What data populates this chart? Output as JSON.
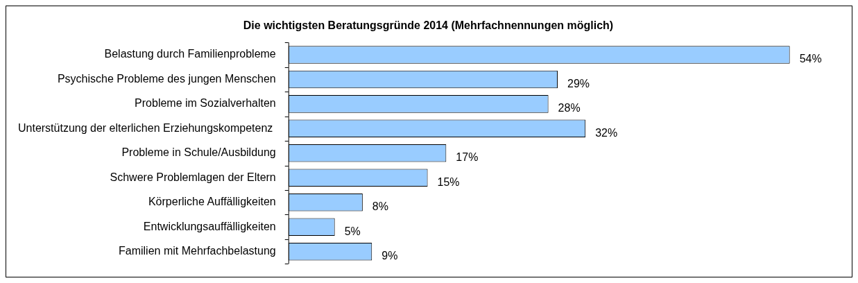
{
  "chart_data": {
    "type": "bar",
    "orientation": "horizontal",
    "title": "Die wichtigsten Beratungsgründe 2014 (Mehrfachnennungen möglich)",
    "categories": [
      "Belastung durch Familienprobleme",
      "Psychische Probleme des jungen Menschen",
      "Probleme im Sozialverhalten",
      "Unterstützung der elterlichen Erziehungskompetenz ",
      "Probleme in Schule/Ausbildung",
      "Schwere Problemlagen der Eltern",
      "Körperliche Auffälligkeiten",
      "Entwicklungsauffälligkeiten",
      "Familien mit Mehrfachbelastung"
    ],
    "values": [
      54,
      29,
      28,
      32,
      17,
      15,
      8,
      5,
      9
    ],
    "value_labels": [
      "54%",
      "29%",
      "28%",
      "32%",
      "17%",
      "15%",
      "8%",
      "5%",
      "9%"
    ],
    "color": "#99ccff",
    "legend": false
  }
}
